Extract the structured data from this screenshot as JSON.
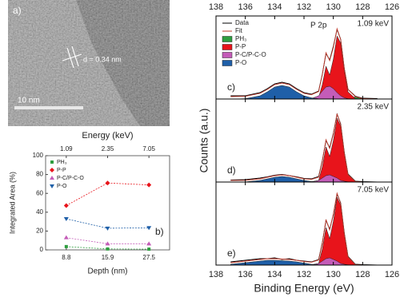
{
  "micrograph": {
    "panel_label": "a)",
    "annotation": "d = 0.34 nm",
    "scale_bar": "10 nm"
  },
  "chart_data": [
    {
      "type": "line",
      "panel_label": "b)",
      "xlabel": "Depth (nm)",
      "ylabel": "Integrated Area (%)",
      "top_xlabel": "Energy (keV)",
      "top_categories": [
        "1.09",
        "2.35",
        "7.05"
      ],
      "categories": [
        "8.8",
        "15.9",
        "27.5"
      ],
      "ylim": [
        0,
        100
      ],
      "yticks": [
        0,
        20,
        40,
        60,
        80,
        100
      ],
      "legend": "upper left",
      "series": [
        {
          "name": "PH₃",
          "color": "#2e9e3f",
          "marker": "square",
          "values": [
            3.5,
            1,
            0.8
          ]
        },
        {
          "name": "P-P",
          "color": "#e8141b",
          "marker": "diamond",
          "values": [
            47,
            71,
            69
          ]
        },
        {
          "name": "P-C/P-C-O",
          "color": "#c45cb8",
          "marker": "triangle-up",
          "values": [
            13,
            6.5,
            6.5
          ]
        },
        {
          "name": "P-O",
          "color": "#1f5fa8",
          "marker": "triangle-down",
          "values": [
            33,
            23,
            23.5
          ]
        }
      ]
    },
    {
      "type": "area",
      "panel_label": "c)",
      "energy_label": "1.09 keV",
      "peak_label": "P 2p",
      "legend": "upper left",
      "top_tick_labels": true,
      "xlim": [
        138,
        126
      ],
      "xticks": [
        138,
        136,
        134,
        132,
        130,
        128,
        126
      ],
      "ylim": [
        0,
        100
      ],
      "x": [
        137,
        136,
        135,
        134.5,
        134,
        133.5,
        133,
        132.5,
        132,
        131.5,
        131,
        130.75,
        130.5,
        130.25,
        130,
        129.75,
        129.5,
        129.25,
        129,
        128.5,
        128,
        127
      ],
      "series": [
        {
          "name": "Data",
          "color": "#000000",
          "style": "line",
          "values": [
            4,
            4,
            8,
            13,
            19,
            21,
            19,
            13,
            8,
            6,
            10,
            31,
            57,
            49,
            66,
            87,
            75,
            38,
            12,
            3.5,
            1,
            0.5
          ]
        },
        {
          "name": "Fit",
          "color": "#c0392b",
          "style": "line",
          "values": [
            3,
            3.4,
            7,
            12,
            18,
            20,
            18,
            12,
            7,
            5.3,
            9.3,
            30.5,
            58,
            48,
            64.5,
            88,
            74.5,
            37.5,
            11.9,
            3,
            0.5,
            0
          ]
        },
        {
          "name": "PH₃",
          "color": "#2e9e3f",
          "style": "fill",
          "values": [
            0,
            0,
            0,
            0,
            0,
            0,
            0,
            0,
            0,
            0,
            0,
            0,
            0,
            0,
            0,
            0,
            0,
            1,
            2.5,
            2.5,
            0.5,
            0
          ]
        },
        {
          "name": "P-P",
          "color": "#e8141b",
          "style": "fill",
          "values": [
            0,
            0,
            0,
            0,
            0,
            0,
            0,
            0,
            0,
            0.3,
            2,
            18,
            41,
            30,
            50,
            79,
            70,
            35,
            9,
            0.5,
            0,
            0
          ]
        },
        {
          "name": "P-C/P-C-O",
          "color": "#c45cb8",
          "style": "fill",
          "values": [
            0,
            0,
            0,
            0,
            0,
            0,
            0,
            0,
            0,
            0.5,
            4,
            10,
            15,
            16,
            13,
            8,
            4,
            1.5,
            0.4,
            0,
            0,
            0
          ]
        },
        {
          "name": "P-O",
          "color": "#1f5fa8",
          "style": "fill",
          "values": [
            0,
            0.4,
            4,
            9,
            15,
            17,
            15,
            9,
            4,
            1.5,
            0.3,
            0,
            0,
            0,
            0,
            0,
            0,
            0,
            0,
            0,
            0,
            0
          ]
        }
      ]
    },
    {
      "type": "area",
      "panel_label": "d)",
      "energy_label": "2.35 keV",
      "ylabel": "Counts (a.u.)",
      "xlim": [
        138,
        126
      ],
      "xticks": [
        138,
        136,
        134,
        132,
        130,
        128,
        126
      ],
      "ylim": [
        0,
        100
      ],
      "x": [
        137,
        136,
        135,
        134.5,
        134,
        133.5,
        133,
        132.5,
        132,
        131.5,
        131,
        130.75,
        130.5,
        130.25,
        130,
        129.75,
        129.5,
        129.25,
        129,
        128.5,
        128,
        127
      ],
      "series": [
        {
          "color": "#000000",
          "style": "line",
          "values": [
            2.5,
            3,
            5,
            6.5,
            8.5,
            9.5,
            8,
            6.5,
            4.5,
            4,
            7,
            27,
            52,
            43,
            61,
            85,
            73,
            37,
            10,
            1,
            0.5,
            0
          ]
        },
        {
          "color": "#c0392b",
          "style": "line",
          "values": [
            2,
            2.2,
            4,
            6,
            8,
            9,
            8,
            6,
            4,
            3.3,
            6.1,
            26,
            53,
            42,
            60,
            85.5,
            72,
            36,
            9.3,
            0.5,
            0,
            0
          ]
        },
        {
          "color": "#e8141b",
          "style": "fill",
          "values": [
            0,
            0,
            0,
            0,
            0,
            0,
            0,
            0,
            0,
            0.3,
            2,
            19,
            44,
            32,
            52,
            80,
            70,
            35,
            9,
            0.5,
            0,
            0
          ]
        },
        {
          "color": "#c45cb8",
          "style": "fill",
          "values": [
            0,
            0,
            0,
            0,
            0,
            0,
            0,
            0,
            0,
            0.3,
            2,
            5,
            8,
            9,
            7,
            5,
            2,
            1,
            0.3,
            0,
            0,
            0
          ]
        },
        {
          "color": "#1f5fa8",
          "style": "fill",
          "values": [
            0,
            0.2,
            2,
            4,
            6,
            7,
            6,
            4,
            2,
            0.7,
            0.1,
            0,
            0,
            0,
            0,
            0,
            0,
            0,
            0,
            0,
            0,
            0
          ]
        }
      ]
    },
    {
      "type": "area",
      "panel_label": "e)",
      "energy_label": "7.05 keV",
      "xlabel": "Binding Energy (eV)",
      "bottom_tick_labels": true,
      "xlim": [
        138,
        126
      ],
      "xticks": [
        138,
        136,
        134,
        132,
        130,
        128,
        126
      ],
      "ylim": [
        0,
        100
      ],
      "x": [
        137,
        136,
        135,
        134.5,
        134,
        133.5,
        133,
        132.5,
        132,
        131.5,
        131,
        130.75,
        130.5,
        130.25,
        130,
        129.75,
        129.5,
        129.25,
        129,
        128.5,
        128,
        127
      ],
      "series": [
        {
          "color": "#000000",
          "style": "line",
          "values": [
            4,
            6,
            8,
            8,
            9,
            7,
            8,
            6,
            5,
            4,
            7,
            28,
            56,
            45,
            63,
            89,
            78,
            40,
            11,
            1,
            0.5,
            0
          ]
        },
        {
          "color": "#c0392b",
          "style": "line",
          "values": [
            3,
            5,
            7,
            8,
            8,
            7.5,
            7,
            6,
            4.5,
            3.6,
            6.3,
            27,
            57,
            44,
            64,
            90,
            77,
            39,
            10.3,
            0.5,
            0,
            0
          ]
        },
        {
          "color": "#e8141b",
          "style": "fill",
          "values": [
            0,
            0,
            0,
            0,
            0,
            0,
            0,
            0,
            0,
            0.3,
            2,
            20,
            47,
            33,
            55,
            85,
            75,
            38,
            10,
            0.5,
            0,
            0
          ]
        },
        {
          "color": "#c45cb8",
          "style": "fill",
          "values": [
            0,
            0,
            0,
            0,
            0,
            0,
            0,
            0,
            0,
            0.3,
            2,
            5,
            8,
            9,
            7,
            5,
            2,
            1,
            0.3,
            0,
            0,
            0
          ]
        },
        {
          "color": "#1f5fa8",
          "style": "fill",
          "values": [
            1,
            3,
            5,
            6,
            6,
            5.5,
            5,
            4,
            2.5,
            1,
            0.3,
            0,
            0,
            0,
            0,
            0,
            0,
            0,
            0,
            0,
            0,
            0
          ]
        }
      ]
    }
  ]
}
